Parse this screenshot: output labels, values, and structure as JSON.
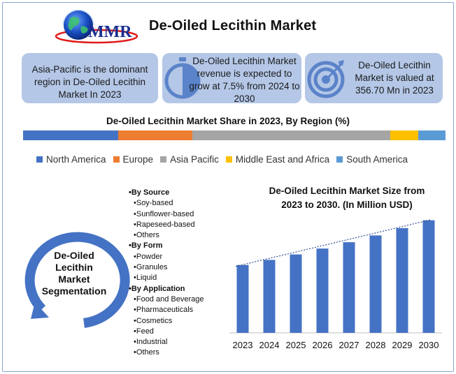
{
  "logo": {
    "text": "MMR",
    "icon": "globe-logo-icon"
  },
  "title": "De-Oiled Lecithin Market",
  "cards": [
    {
      "text": "Asia-Pacific is the dominant region in De-Oiled Lecithin Market In 2023",
      "icon": ""
    },
    {
      "text": "De-Oiled Lecithin Market revenue is expected to grow at 7.5% from 2024 to 2030",
      "icon": "stopwatch-icon"
    },
    {
      "text": "De-Oiled Lecithin Market is valued at 356.70 Mn in 2023",
      "icon": "target-icon"
    }
  ],
  "colors": {
    "card_bg": "#b4c7e7",
    "bar_blue": "#4472c4",
    "north_america": "#4472c4",
    "europe": "#ed7d31",
    "asia_pacific": "#a5a5a5",
    "middle_east_africa": "#ffc000",
    "south_america": "#5b9bd5"
  },
  "share_chart": {
    "title": "De-Oiled Lecithin Market Share in 2023, By Region (%)",
    "segments": [
      {
        "name": "North America",
        "share": 22.5,
        "color": "#4472c4"
      },
      {
        "name": "Europe",
        "share": 17.5,
        "color": "#ed7d31"
      },
      {
        "name": "Asia Pacific",
        "share": 47,
        "color": "#a5a5a5"
      },
      {
        "name": "Middle East and Africa",
        "share": 6.5,
        "color": "#ffc000"
      },
      {
        "name": "South America",
        "share": 6.5,
        "color": "#5b9bd5"
      }
    ]
  },
  "segmentation": {
    "label_lines": [
      "De-Oiled",
      "Lecithin",
      "Market",
      "Segmentation"
    ],
    "groups": [
      {
        "title": "•By Source",
        "items": [
          "•Soy-based",
          "•Sunflower-based",
          "•Rapeseed-based",
          "•Others"
        ]
      },
      {
        "title": "•By Form",
        "items": [
          "•Powder",
          "•Granules",
          "•Liquid"
        ]
      },
      {
        "title": "•By Application",
        "items": [
          "•Food and Beverage",
          "•Pharmaceuticals",
          "•Cosmetics",
          "•Feed",
          "•Industrial",
          "•Others"
        ]
      }
    ]
  },
  "chart_data": {
    "type": "bar",
    "title_lines": [
      "De-Oiled Lecithin Market  Size from",
      "2023 to 2030. (In Million  USD)"
    ],
    "categories": [
      "2023",
      "2024",
      "2025",
      "2026",
      "2027",
      "2028",
      "2029",
      "2030"
    ],
    "values": [
      356.7,
      383.5,
      412.2,
      443.1,
      476.4,
      512.1,
      550.5,
      591.8
    ],
    "ylim": [
      0,
      620
    ],
    "trendline": true,
    "grid": false,
    "xlabel": "",
    "ylabel": ""
  }
}
